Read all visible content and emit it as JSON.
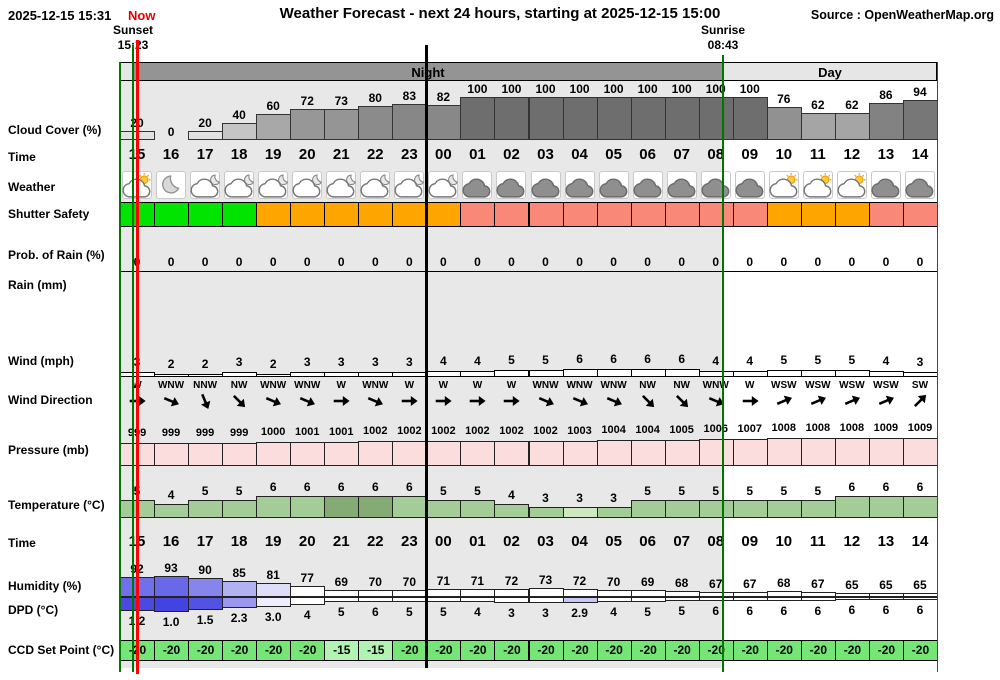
{
  "header": {
    "timestamp": "2025-12-15 15:31",
    "now_label": "Now",
    "title": "Weather Forecast - next 24 hours, starting at 2025-12-15 15:00",
    "source": "Source : OpenWeatherMap.org"
  },
  "markers": {
    "sunset_label": "Sunset",
    "sunset_time": "15:23",
    "sunrise_label": "Sunrise",
    "sunrise_time": "08:43",
    "night_label": "Night",
    "day_label": "Day"
  },
  "row_labels": {
    "cloud_cover": "Cloud Cover (%)",
    "time1": "Time",
    "weather": "Weather",
    "shutter": "Shutter Safety",
    "prob_rain": "Prob. of Rain (%)",
    "rain": "Rain (mm)",
    "wind": "Wind (mph)",
    "wind_direction": "Wind Direction",
    "pressure": "Pressure (mb)",
    "temperature": "Temperature (°C)",
    "time2": "Time",
    "humidity": "Humidity (%)",
    "dpd": "DPD (°C)",
    "ccd": "CCD Set Point (°C)"
  },
  "colors": {
    "now_line": "#ff0000",
    "sun_lines": "#007700",
    "midnight_line": "#000000",
    "night_bar": "#949494",
    "day_bar": "#e6e6e6",
    "night_bg": "#e8e8e8",
    "shutter": {
      "safe": "#00e400",
      "caution": "#ffa500",
      "unsafe": "#fa8878"
    },
    "pressure_bar": "#fbdddd",
    "temp_normal": "#a3cc97",
    "temp_dark": "#84ab73",
    "temp_light": "#cfe8c2",
    "ccd_normal": "#75e675",
    "ccd_warm": "#b2f2b2"
  },
  "chart_data": {
    "type": "meteogram-table",
    "title": "Weather Forecast - next 24 hours, starting at 2025-12-15 15:00",
    "columns": [
      "15",
      "16",
      "17",
      "18",
      "19",
      "20",
      "21",
      "22",
      "23",
      "00",
      "01",
      "02",
      "03",
      "04",
      "05",
      "06",
      "07",
      "08",
      "09",
      "10",
      "11",
      "12",
      "13",
      "14"
    ],
    "series": {
      "cloud_cover": [
        20,
        0,
        20,
        40,
        60,
        72,
        73,
        80,
        83,
        82,
        100,
        100,
        100,
        100,
        100,
        100,
        100,
        100,
        100,
        76,
        62,
        62,
        86,
        94
      ],
      "weather": [
        "cloud-sun",
        "moon",
        "cloud-moon",
        "cloud-moon",
        "cloud-moon",
        "cloud-moon",
        "cloud-moon",
        "cloud-moon",
        "cloud-moon",
        "cloud-moon",
        "cloud",
        "cloud",
        "cloud",
        "cloud",
        "cloud",
        "cloud",
        "cloud",
        "cloud",
        "cloud",
        "cloud-sun",
        "cloud-sun",
        "cloud-sun",
        "cloud",
        "cloud"
      ],
      "shutter_safety": [
        "safe",
        "safe",
        "safe",
        "safe",
        "caution",
        "caution",
        "caution",
        "caution",
        "caution",
        "caution",
        "unsafe",
        "unsafe",
        "unsafe",
        "unsafe",
        "unsafe",
        "unsafe",
        "unsafe",
        "unsafe",
        "unsafe",
        "caution",
        "caution",
        "caution",
        "unsafe",
        "unsafe"
      ],
      "prob_rain": [
        0,
        0,
        0,
        0,
        0,
        0,
        0,
        0,
        0,
        0,
        0,
        0,
        0,
        0,
        0,
        0,
        0,
        0,
        0,
        0,
        0,
        0,
        0,
        0
      ],
      "rain_mm": [],
      "wind_mph": [
        3,
        2,
        2,
        3,
        2,
        3,
        3,
        3,
        3,
        4,
        4,
        5,
        5,
        6,
        6,
        6,
        6,
        4,
        4,
        5,
        5,
        5,
        4,
        3
      ],
      "wind_dir": [
        "W",
        "WNW",
        "NNW",
        "NW",
        "WNW",
        "WNW",
        "W",
        "WNW",
        "W",
        "W",
        "W",
        "W",
        "WNW",
        "WNW",
        "WNW",
        "NW",
        "NW",
        "WNW",
        "W",
        "WSW",
        "WSW",
        "WSW",
        "WSW",
        "SW"
      ],
      "pressure_mb": [
        999,
        999,
        999,
        999,
        1000,
        1001,
        1001,
        1002,
        1002,
        1002,
        1002,
        1002,
        1002,
        1003,
        1004,
        1004,
        1005,
        1006,
        1007,
        1008,
        1008,
        1008,
        1009,
        1009
      ],
      "temperature_c": [
        5,
        4,
        5,
        5,
        6,
        6,
        6,
        6,
        6,
        5,
        5,
        4,
        3,
        3,
        3,
        5,
        5,
        5,
        5,
        5,
        5,
        6,
        6,
        6
      ],
      "temperature_emphasis": [
        "normal",
        "normal",
        "normal",
        "normal",
        "normal",
        "normal",
        "dark",
        "dark",
        "normal",
        "normal",
        "normal",
        "normal",
        "normal",
        "light",
        "normal",
        "normal",
        "normal",
        "normal",
        "normal",
        "normal",
        "normal",
        "normal",
        "normal",
        "normal"
      ],
      "humidity_pct": [
        92,
        93,
        90,
        85,
        81,
        77,
        69,
        70,
        70,
        71,
        71,
        72,
        73,
        72,
        70,
        69,
        68,
        67,
        67,
        68,
        67,
        65,
        65,
        65
      ],
      "humidity_bar_colors": [
        "#7070ea",
        "#6868e9",
        "#8585ec",
        "#b2b2f2",
        "#dedef9",
        "#ffffff",
        "#ffffff",
        "#ffffff",
        "#ffffff",
        "#ffffff",
        "#ffffff",
        "#ffffff",
        "#ffffff",
        "#ffffff",
        "#ffffff",
        "#ffffff",
        "#ffffff",
        "#ffffff",
        "#ffffff",
        "#ffffff",
        "#ffffff",
        "#ffffff",
        "#ffffff",
        "#ffffff"
      ],
      "dpd_c": [
        "1.2",
        "1.0",
        "1.5",
        "2.3",
        "3.0",
        "4",
        "5",
        "6",
        "5",
        "5",
        "4",
        "3",
        "3",
        "2.9",
        "4",
        "5",
        "5",
        "6",
        "6",
        "6",
        "6",
        "6",
        "6",
        "6"
      ],
      "dpd_bar_colors": [
        "#4a4ae2",
        "#4343e1",
        "#5252e4",
        "#9898f0",
        "#ededfc",
        "#ffffff",
        "#ffffff",
        "#ffffff",
        "#ffffff",
        "#ffffff",
        "#ffffff",
        "#ffffff",
        "#ffffff",
        "#c8c8f7",
        "#ffffff",
        "#ffffff",
        "#ffffff",
        "#ffffff",
        "#ffffff",
        "#ffffff",
        "#ffffff",
        "#ffffff",
        "#ffffff",
        "#ffffff"
      ],
      "ccd_setpoint_c": [
        -20,
        -20,
        -20,
        -20,
        -20,
        -20,
        -15,
        -15,
        -20,
        -20,
        -20,
        -20,
        -20,
        -20,
        -20,
        -20,
        -20,
        -20,
        -20,
        -20,
        -20,
        -20,
        -20,
        -20
      ]
    }
  }
}
